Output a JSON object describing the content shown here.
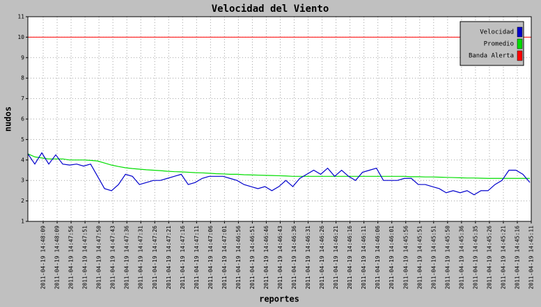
{
  "chart_data": {
    "type": "line",
    "title": "Velocidad del Viento",
    "xlabel": "reportes",
    "ylabel": "nudos",
    "x": [
      0,
      1,
      2,
      3,
      4,
      5,
      6,
      7,
      8,
      9,
      10,
      11,
      12,
      13,
      14,
      15,
      16,
      17,
      18,
      19,
      20,
      21,
      22,
      23,
      24,
      25,
      26,
      27,
      28,
      29,
      30,
      31,
      32,
      33,
      34,
      35,
      36,
      37,
      38,
      39,
      40,
      41,
      42,
      43,
      44,
      45,
      46,
      47,
      48,
      49,
      50,
      51,
      52,
      53,
      54,
      55,
      56,
      57,
      58,
      59,
      60,
      61,
      62,
      63,
      64,
      65,
      66,
      67,
      68,
      69,
      70,
      71,
      72
    ],
    "series": [
      {
        "name": "Velocidad",
        "color": "#0000cc",
        "values": [
          4.3,
          3.8,
          4.35,
          3.8,
          4.25,
          3.8,
          3.75,
          3.8,
          3.7,
          3.8,
          3.2,
          2.6,
          2.5,
          2.8,
          3.3,
          3.2,
          2.8,
          2.9,
          3.0,
          3.0,
          3.1,
          3.2,
          3.3,
          2.8,
          2.9,
          3.1,
          3.2,
          3.2,
          3.2,
          3.1,
          3.0,
          2.8,
          2.7,
          2.6,
          2.7,
          2.5,
          2.7,
          3.0,
          2.7,
          3.1,
          3.3,
          3.5,
          3.3,
          3.6,
          3.2,
          3.5,
          3.2,
          3.0,
          3.4,
          3.5,
          3.6,
          3.0,
          3.0,
          3.0,
          3.1,
          3.1,
          2.8,
          2.8,
          2.7,
          2.6,
          2.4,
          2.5,
          2.4,
          2.5,
          2.3,
          2.5,
          2.5,
          2.8,
          3.0,
          3.5,
          3.5,
          3.3,
          2.9
        ]
      },
      {
        "name": "Promedio",
        "color": "#00dd00",
        "values": [
          4.3,
          4.15,
          4.1,
          4.05,
          4.05,
          4.05,
          4.0,
          4.0,
          4.0,
          3.98,
          3.95,
          3.85,
          3.75,
          3.68,
          3.62,
          3.58,
          3.55,
          3.52,
          3.5,
          3.48,
          3.45,
          3.43,
          3.42,
          3.4,
          3.38,
          3.37,
          3.35,
          3.33,
          3.32,
          3.3,
          3.3,
          3.28,
          3.27,
          3.26,
          3.25,
          3.24,
          3.23,
          3.22,
          3.2,
          3.2,
          3.2,
          3.2,
          3.2,
          3.2,
          3.2,
          3.2,
          3.2,
          3.2,
          3.2,
          3.2,
          3.2,
          3.2,
          3.2,
          3.2,
          3.2,
          3.18,
          3.18,
          3.17,
          3.17,
          3.16,
          3.15,
          3.14,
          3.13,
          3.12,
          3.12,
          3.11,
          3.1,
          3.1,
          3.1,
          3.1,
          3.1,
          3.1,
          3.1
        ]
      }
    ],
    "thresholds": [
      {
        "name": "Banda Alerta",
        "color": "#ff0000",
        "value": 10
      }
    ],
    "xlim": [
      0,
      72.2
    ],
    "ylim": [
      1,
      11
    ],
    "yticks": [
      1,
      2,
      3,
      4,
      5,
      6,
      7,
      8,
      9,
      10,
      11
    ],
    "xticks": [
      {
        "value": 2.2,
        "label": "2011-04-19 14:48:09"
      },
      {
        "value": 4.2,
        "label": "2011-04-19 14:48:09"
      },
      {
        "value": 6.2,
        "label": "2011-04-19 14:47:56"
      },
      {
        "value": 8.2,
        "label": "2011-04-19 14:47:51"
      },
      {
        "value": 10.2,
        "label": "2011-04-19 14:47:50"
      },
      {
        "value": 12.2,
        "label": "2011-04-19 14:47:43"
      },
      {
        "value": 14.2,
        "label": "2011-04-19 14:47:36"
      },
      {
        "value": 16.2,
        "label": "2011-04-19 14:47:31"
      },
      {
        "value": 18.2,
        "label": "2011-04-19 14:47:26"
      },
      {
        "value": 20.2,
        "label": "2011-04-19 14:47:21"
      },
      {
        "value": 22.2,
        "label": "2011-04-19 14:47:16"
      },
      {
        "value": 24.2,
        "label": "2011-04-19 14:47:11"
      },
      {
        "value": 26.2,
        "label": "2011-04-19 14:47:06"
      },
      {
        "value": 28.2,
        "label": "2011-04-19 14:47:01"
      },
      {
        "value": 30.2,
        "label": "2011-04-19 14:46:56"
      },
      {
        "value": 32.2,
        "label": "2011-04-19 14:46:51"
      },
      {
        "value": 34.2,
        "label": "2011-04-19 14:46:46"
      },
      {
        "value": 36.2,
        "label": "2011-04-19 14:46:43"
      },
      {
        "value": 38.2,
        "label": "2011-04-19 14:46:36"
      },
      {
        "value": 40.2,
        "label": "2011-04-19 14:46:31"
      },
      {
        "value": 42.2,
        "label": "2011-04-19 14:46:26"
      },
      {
        "value": 44.2,
        "label": "2011-04-19 14:46:21"
      },
      {
        "value": 46.2,
        "label": "2011-04-19 14:46:16"
      },
      {
        "value": 48.2,
        "label": "2011-04-19 14:46:11"
      },
      {
        "value": 50.2,
        "label": "2011-04-19 14:46:06"
      },
      {
        "value": 52.2,
        "label": "2011-04-19 14:46:01"
      },
      {
        "value": 54.2,
        "label": "2011-04-19 14:45:56"
      },
      {
        "value": 56.2,
        "label": "2011-04-19 14:45:51"
      },
      {
        "value": 58.2,
        "label": "2011-04-19 14:45:51"
      },
      {
        "value": 60.2,
        "label": "2011-04-19 14:45:50"
      },
      {
        "value": 62.2,
        "label": "2011-04-19 14:45:36"
      },
      {
        "value": 64.2,
        "label": "2011-04-19 14:45:35"
      },
      {
        "value": 66.2,
        "label": "2011-04-19 14:45:26"
      },
      {
        "value": 68.2,
        "label": "2011-04-19 14:45:21"
      },
      {
        "value": 70.2,
        "label": "2011-04-19 14:45:16"
      },
      {
        "value": 72.2,
        "label": "2011-04-19 14:45:11"
      }
    ],
    "grid": true,
    "legend": "top-right"
  }
}
